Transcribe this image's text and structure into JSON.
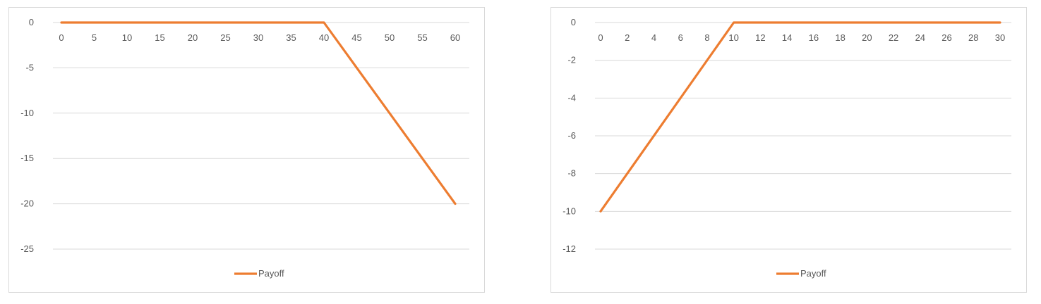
{
  "chart_data": [
    {
      "type": "line",
      "title": "",
      "xlabel": "",
      "ylabel": "",
      "x_ticks": [
        0,
        5,
        10,
        15,
        20,
        25,
        30,
        35,
        40,
        45,
        50,
        55,
        60
      ],
      "y_ticks": [
        0,
        -5,
        -10,
        -15,
        -20,
        -25
      ],
      "xlim": [
        0,
        60
      ],
      "ylim": [
        -25,
        0
      ],
      "grid": true,
      "legend_position": "bottom",
      "series": [
        {
          "name": "Payoff",
          "color": "#ED7D31",
          "x": [
            0,
            40,
            60
          ],
          "y": [
            0,
            0,
            -20
          ]
        }
      ]
    },
    {
      "type": "line",
      "title": "",
      "xlabel": "",
      "ylabel": "",
      "x_ticks": [
        0,
        2,
        4,
        6,
        8,
        10,
        12,
        14,
        16,
        18,
        20,
        22,
        24,
        26,
        28,
        30
      ],
      "y_ticks": [
        0,
        -2,
        -4,
        -6,
        -8,
        -10,
        -12
      ],
      "xlim": [
        0,
        30
      ],
      "ylim": [
        -12,
        0
      ],
      "grid": true,
      "legend_position": "bottom",
      "series": [
        {
          "name": "Payoff",
          "color": "#ED7D31",
          "x": [
            0,
            10,
            30
          ],
          "y": [
            -10,
            0,
            0
          ]
        }
      ]
    }
  ]
}
